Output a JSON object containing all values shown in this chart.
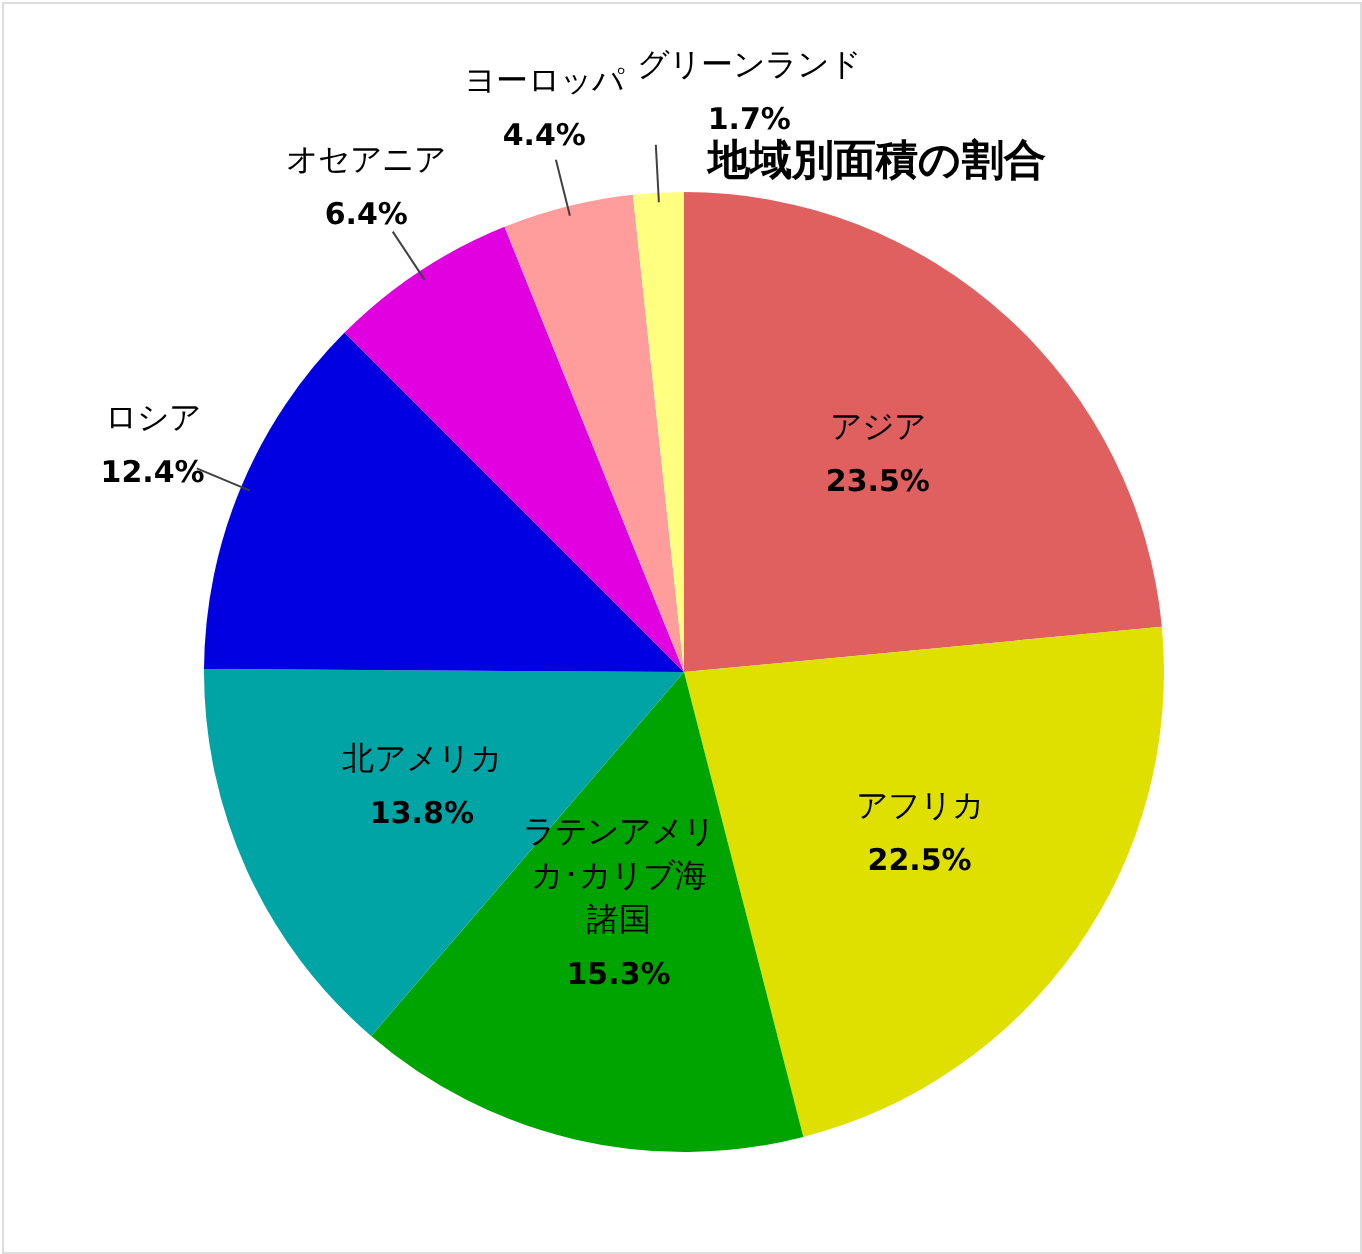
{
  "chart_data": {
    "type": "pie",
    "title": "地域別面積の割合",
    "categories": [
      "アジア",
      "アフリカ",
      "ラテンアメリカ･カリブ海諸国",
      "北アメリカ",
      "ロシア",
      "オセアニア",
      "ヨーロッパ",
      "グリーンランド"
    ],
    "values": [
      23.5,
      22.5,
      15.3,
      13.8,
      12.4,
      6.4,
      4.4,
      1.7
    ],
    "colors": [
      "#e06060",
      "#e0e000",
      "#00a400",
      "#00a4a4",
      "#0000e0",
      "#e000e0",
      "#ff9c9c",
      "#ffff80"
    ],
    "value_labels": [
      "23.5%",
      "22.5%",
      "15.3%",
      "13.8%",
      "12.4%",
      "6.4%",
      "4.4%",
      "1.7%"
    ]
  }
}
